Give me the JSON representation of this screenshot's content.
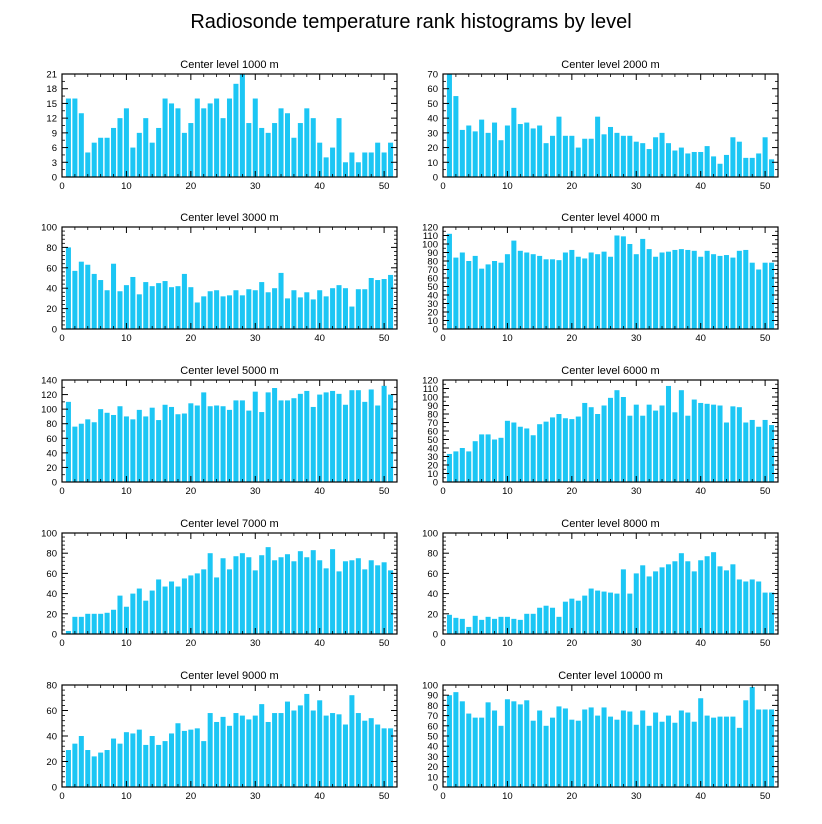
{
  "title": "Radiosonde temperature rank histograms by level",
  "colors": {
    "bar": "#1CC6F4",
    "axis": "#000000"
  },
  "chart_data": [
    {
      "type": "bar",
      "title": "Center level 1000 m",
      "xlim": [
        0,
        52
      ],
      "ylim": [
        0,
        21
      ],
      "xticks": [
        0,
        10,
        20,
        30,
        40,
        50
      ],
      "yticks": [
        0,
        3,
        6,
        9,
        12,
        15,
        18,
        21
      ],
      "values": [
        16,
        16,
        13,
        5,
        7,
        8,
        8,
        10,
        12,
        14,
        6,
        9,
        12,
        7,
        10,
        16,
        15,
        14,
        9,
        11,
        16,
        14,
        15,
        16,
        12,
        16,
        19,
        21,
        11,
        16,
        10,
        9,
        11,
        14,
        13,
        8,
        11,
        14,
        12,
        7,
        4,
        6,
        12,
        3,
        5,
        3,
        5,
        5,
        7,
        5,
        7
      ]
    },
    {
      "type": "bar",
      "title": "Center level 2000 m",
      "xlim": [
        0,
        52
      ],
      "ylim": [
        0,
        70
      ],
      "xticks": [
        0,
        10,
        20,
        30,
        40,
        50
      ],
      "yticks": [
        0,
        10,
        20,
        30,
        40,
        50,
        60,
        70
      ],
      "values": [
        70,
        55,
        32,
        35,
        31,
        39,
        30,
        37,
        25,
        35,
        47,
        36,
        37,
        33,
        35,
        23,
        28,
        41,
        28,
        28,
        20,
        26,
        26,
        41,
        29,
        34,
        30,
        28,
        28,
        24,
        23,
        19,
        27,
        30,
        23,
        18,
        20,
        16,
        17,
        17,
        21,
        14,
        9,
        15,
        27,
        24,
        13,
        13,
        16,
        27,
        12
      ]
    },
    {
      "type": "bar",
      "title": "Center level 3000 m",
      "xlim": [
        0,
        52
      ],
      "ylim": [
        0,
        100
      ],
      "xticks": [
        0,
        10,
        20,
        30,
        40,
        50
      ],
      "yticks": [
        0,
        20,
        40,
        60,
        80,
        100
      ],
      "values": [
        80,
        57,
        66,
        63,
        54,
        48,
        38,
        64,
        37,
        43,
        51,
        34,
        46,
        42,
        45,
        47,
        41,
        42,
        54,
        41,
        26,
        32,
        37,
        38,
        32,
        33,
        38,
        33,
        39,
        38,
        46,
        36,
        40,
        55,
        30,
        38,
        31,
        36,
        29,
        38,
        32,
        40,
        43,
        40,
        22,
        39,
        39,
        50,
        48,
        49,
        53
      ]
    },
    {
      "type": "bar",
      "title": "Center level 4000 m",
      "xlim": [
        0,
        52
      ],
      "ylim": [
        0,
        120
      ],
      "xticks": [
        0,
        10,
        20,
        30,
        40,
        50
      ],
      "yticks": [
        0,
        10,
        20,
        30,
        40,
        50,
        60,
        70,
        80,
        90,
        100,
        110,
        120
      ],
      "values": [
        112,
        84,
        90,
        80,
        86,
        71,
        76,
        80,
        78,
        88,
        104,
        92,
        90,
        88,
        86,
        82,
        82,
        81,
        90,
        93,
        85,
        83,
        90,
        88,
        91,
        85,
        110,
        109,
        100,
        88,
        106,
        94,
        85,
        90,
        91,
        93,
        94,
        93,
        92,
        85,
        92,
        88,
        86,
        87,
        84,
        92,
        93,
        78,
        70,
        78,
        78
      ]
    },
    {
      "type": "bar",
      "title": "Center level 5000 m",
      "xlim": [
        0,
        52
      ],
      "ylim": [
        0,
        140
      ],
      "xticks": [
        0,
        10,
        20,
        30,
        40,
        50
      ],
      "yticks": [
        0,
        20,
        40,
        60,
        80,
        100,
        120,
        140
      ],
      "values": [
        110,
        76,
        80,
        86,
        82,
        100,
        95,
        92,
        104,
        90,
        86,
        99,
        90,
        102,
        85,
        106,
        103,
        93,
        94,
        108,
        105,
        123,
        104,
        105,
        104,
        99,
        112,
        112,
        98,
        124,
        96,
        123,
        129,
        112,
        112,
        115,
        121,
        125,
        103,
        120,
        123,
        125,
        121,
        106,
        126,
        126,
        110,
        127,
        105,
        132,
        120
      ]
    },
    {
      "type": "bar",
      "title": "Center level 6000 m",
      "xlim": [
        0,
        52
      ],
      "ylim": [
        0,
        120
      ],
      "xticks": [
        0,
        10,
        20,
        30,
        40,
        50
      ],
      "yticks": [
        0,
        10,
        20,
        30,
        40,
        50,
        60,
        70,
        80,
        90,
        100,
        110,
        120
      ],
      "values": [
        33,
        36,
        40,
        36,
        48,
        56,
        56,
        50,
        52,
        72,
        70,
        65,
        63,
        55,
        68,
        71,
        76,
        80,
        75,
        74,
        77,
        93,
        88,
        80,
        90,
        99,
        108,
        100,
        78,
        91,
        78,
        91,
        84,
        90,
        113,
        82,
        108,
        78,
        97,
        93,
        92,
        91,
        90,
        70,
        89,
        88,
        70,
        73,
        65,
        73,
        67
      ]
    },
    {
      "type": "bar",
      "title": "Center level 7000 m",
      "xlim": [
        0,
        52
      ],
      "ylim": [
        0,
        100
      ],
      "xticks": [
        0,
        10,
        20,
        30,
        40,
        50
      ],
      "yticks": [
        0,
        20,
        40,
        60,
        80,
        100
      ],
      "values": [
        3,
        17,
        17,
        20,
        20,
        20,
        21,
        24,
        38,
        27,
        40,
        45,
        33,
        43,
        54,
        47,
        52,
        47,
        55,
        58,
        60,
        64,
        80,
        56,
        75,
        64,
        77,
        80,
        76,
        63,
        78,
        86,
        73,
        76,
        79,
        72,
        82,
        76,
        83,
        73,
        65,
        84,
        62,
        72,
        73,
        75,
        64,
        73,
        68,
        71,
        63
      ]
    },
    {
      "type": "bar",
      "title": "Center level 8000 m",
      "xlim": [
        0,
        52
      ],
      "ylim": [
        0,
        100
      ],
      "xticks": [
        0,
        10,
        20,
        30,
        40,
        50
      ],
      "yticks": [
        0,
        20,
        40,
        60,
        80,
        100
      ],
      "values": [
        19,
        16,
        15,
        7,
        18,
        14,
        17,
        15,
        17,
        17,
        15,
        14,
        20,
        20,
        26,
        28,
        26,
        17,
        32,
        35,
        33,
        38,
        45,
        43,
        42,
        41,
        40,
        64,
        40,
        60,
        68,
        57,
        62,
        66,
        69,
        72,
        80,
        72,
        62,
        73,
        77,
        81,
        67,
        63,
        69,
        54,
        52,
        54,
        52,
        41,
        41
      ]
    },
    {
      "type": "bar",
      "title": "Center level 9000 m",
      "xlim": [
        0,
        52
      ],
      "ylim": [
        0,
        80
      ],
      "xticks": [
        0,
        10,
        20,
        30,
        40,
        50
      ],
      "yticks": [
        0,
        20,
        40,
        60,
        80
      ],
      "values": [
        29,
        34,
        40,
        29,
        24,
        27,
        29,
        38,
        34,
        43,
        42,
        45,
        33,
        40,
        33,
        36,
        42,
        50,
        44,
        45,
        46,
        36,
        58,
        51,
        55,
        48,
        58,
        56,
        53,
        56,
        65,
        51,
        58,
        58,
        67,
        60,
        64,
        73,
        60,
        68,
        56,
        58,
        57,
        49,
        72,
        58,
        52,
        54,
        49,
        46,
        46
      ]
    },
    {
      "type": "bar",
      "title": "Center level 10000 m",
      "xlim": [
        0,
        52
      ],
      "ylim": [
        0,
        100
      ],
      "xticks": [
        0,
        10,
        20,
        30,
        40,
        50
      ],
      "yticks": [
        0,
        10,
        20,
        30,
        40,
        50,
        60,
        70,
        80,
        90,
        100
      ],
      "values": [
        90,
        93,
        84,
        72,
        68,
        68,
        83,
        75,
        60,
        86,
        84,
        81,
        85,
        65,
        75,
        60,
        68,
        79,
        77,
        66,
        65,
        76,
        78,
        70,
        78,
        69,
        66,
        75,
        74,
        61,
        75,
        60,
        73,
        64,
        70,
        63,
        75,
        73,
        64,
        87,
        70,
        68,
        69,
        69,
        69,
        58,
        85,
        98,
        76,
        76,
        76
      ]
    }
  ]
}
